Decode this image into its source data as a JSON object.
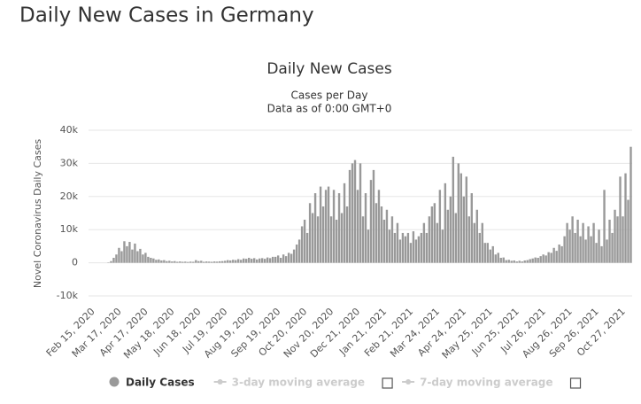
{
  "page_title": "Daily New Cases in Germany",
  "chart_data": {
    "type": "bar",
    "title": "Daily New Cases",
    "subtitle": [
      "Cases per Day",
      "Data as of 0:00 GMT+0"
    ],
    "y_label": "Novel Coronavirus Daily Cases",
    "categories": [
      "Feb 15, 2020",
      null,
      null,
      null,
      null,
      null,
      null,
      null,
      null,
      null,
      "Mar 17, 2020",
      null,
      null,
      null,
      null,
      null,
      null,
      null,
      null,
      null,
      "Apr 17, 2020",
      null,
      null,
      null,
      null,
      null,
      null,
      null,
      null,
      null,
      "May 18, 2020",
      null,
      null,
      null,
      null,
      null,
      null,
      null,
      null,
      null,
      "Jun 18, 2020",
      null,
      null,
      null,
      null,
      null,
      null,
      null,
      null,
      null,
      "Jul 19, 2020",
      null,
      null,
      null,
      null,
      null,
      null,
      null,
      null,
      null,
      "Aug 19, 2020",
      null,
      null,
      null,
      null,
      null,
      null,
      null,
      null,
      null,
      "Sep 19, 2020",
      null,
      null,
      null,
      null,
      null,
      null,
      null,
      null,
      null,
      "Oct 20, 2020",
      null,
      null,
      null,
      null,
      null,
      null,
      null,
      null,
      null,
      "Nov 20, 2020",
      null,
      null,
      null,
      null,
      null,
      null,
      null,
      null,
      null,
      "Dec 21, 2020",
      null,
      null,
      null,
      null,
      null,
      null,
      null,
      null,
      null,
      "Jan 21, 2021",
      null,
      null,
      null,
      null,
      null,
      null,
      null,
      null,
      null,
      "Feb 21, 2021",
      null,
      null,
      null,
      null,
      null,
      null,
      null,
      null,
      null,
      "Mar 24, 2021",
      null,
      null,
      null,
      null,
      null,
      null,
      null,
      null,
      null,
      "Apr 24, 2021",
      null,
      null,
      null,
      null,
      null,
      null,
      null,
      null,
      null,
      "May 25, 2021",
      null,
      null,
      null,
      null,
      null,
      null,
      null,
      null,
      null,
      "Jun 25, 2021",
      null,
      null,
      null,
      null,
      null,
      null,
      null,
      null,
      null,
      "Jul 26, 2021",
      null,
      null,
      null,
      null,
      null,
      null,
      null,
      null,
      null,
      "Aug 26, 2021",
      null,
      null,
      null,
      null,
      null,
      null,
      null,
      null,
      null,
      "Sep 26, 2021",
      null,
      null,
      null,
      null,
      null,
      null,
      null,
      null,
      null,
      "Oct 27, 2021",
      null,
      null,
      null,
      null
    ],
    "series": [
      {
        "name": "Daily Cases",
        "color": "#999999",
        "values": [
          0,
          0,
          0,
          0,
          0,
          0,
          0,
          100,
          500,
          1500,
          2500,
          4500,
          3500,
          6500,
          5000,
          6300,
          4000,
          5800,
          3500,
          4200,
          2500,
          3000,
          1800,
          1500,
          1300,
          900,
          1000,
          700,
          800,
          500,
          600,
          400,
          500,
          300,
          400,
          300,
          350,
          250,
          350,
          300,
          800,
          500,
          600,
          300,
          400,
          350,
          300,
          400,
          350,
          450,
          500,
          600,
          800,
          700,
          900,
          800,
          1100,
          900,
          1300,
          1200,
          1500,
          1200,
          1400,
          1000,
          1300,
          1400,
          1200,
          1600,
          1400,
          1800,
          1800,
          2200,
          1500,
          2500,
          2000,
          3000,
          2700,
          4000,
          5500,
          7000,
          11000,
          13000,
          9000,
          18000,
          15000,
          21000,
          14000,
          23000,
          17000,
          22000,
          23000,
          14000,
          22000,
          13000,
          21000,
          15000,
          24000,
          17000,
          28000,
          30000,
          31000,
          22000,
          30000,
          14000,
          21000,
          10000,
          25000,
          28000,
          18000,
          22000,
          17000,
          13000,
          16000,
          10000,
          14000,
          9000,
          12000,
          7000,
          9000,
          8000,
          9000,
          6000,
          9500,
          7000,
          8000,
          9000,
          12000,
          9000,
          14000,
          17000,
          18000,
          12000,
          22000,
          10000,
          24000,
          16000,
          20000,
          32000,
          15000,
          30000,
          27000,
          20000,
          26000,
          14000,
          21000,
          12000,
          16000,
          9000,
          12000,
          6000,
          6000,
          4000,
          5000,
          2500,
          3000,
          1500,
          1600,
          800,
          900,
          600,
          700,
          400,
          600,
          400,
          700,
          800,
          1100,
          1300,
          1600,
          1500,
          2000,
          2500,
          2200,
          3200,
          3000,
          4500,
          3600,
          5500,
          5000,
          8000,
          12000,
          10000,
          14000,
          9000,
          13000,
          8000,
          12000,
          7000,
          11000,
          8000,
          12000,
          6000,
          10000,
          5000,
          22000,
          7000,
          13000,
          9000,
          16000,
          14000,
          26000,
          14000,
          27000,
          19000,
          35000
        ]
      }
    ],
    "inactive_legend": [
      "3-day moving average",
      "7-day moving average"
    ],
    "ylim": [
      -10000,
      40000
    ],
    "yticks": [
      {
        "value": -10000,
        "label": "-10k"
      },
      0,
      {
        "value": 10000,
        "label": "10k"
      },
      {
        "value": 20000,
        "label": "20k"
      },
      {
        "value": 30000,
        "label": "30k"
      },
      {
        "value": 40000,
        "label": "40k"
      }
    ],
    "grid": true
  }
}
